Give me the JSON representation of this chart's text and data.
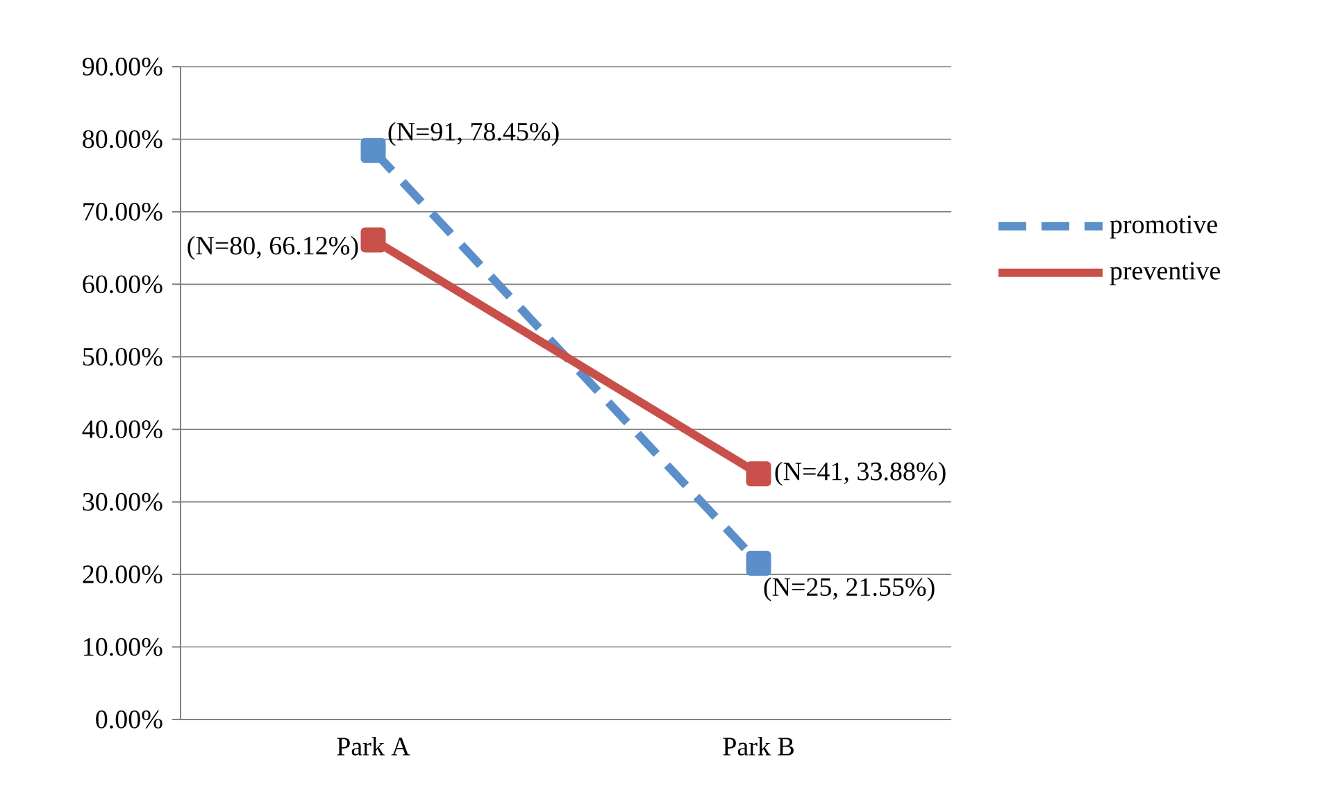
{
  "chart_data": {
    "type": "line",
    "categories": [
      "Park A",
      "Park B"
    ],
    "series": [
      {
        "name": "promotive",
        "color": "#5b8fc9",
        "values": [
          78.45,
          21.55
        ],
        "line_style": "dashed",
        "value_labels": [
          "(N=91, 78.45%)",
          "(N=25, 21.55%)"
        ]
      },
      {
        "name": "preventive",
        "color": "#c9504a",
        "values": [
          66.12,
          33.88
        ],
        "line_style": "solid",
        "value_labels": [
          "(N=80, 66.12%)",
          "(N=41, 33.88%)"
        ]
      }
    ],
    "ylim": [
      0,
      90
    ],
    "yticks": [
      {
        "value": 0,
        "label": "0.00%"
      },
      {
        "value": 10,
        "label": "10.00%"
      },
      {
        "value": 20,
        "label": "20.00%"
      },
      {
        "value": 30,
        "label": "30.00%"
      },
      {
        "value": 40,
        "label": "40.00%"
      },
      {
        "value": 50,
        "label": "50.00%"
      },
      {
        "value": 60,
        "label": "60.00%"
      },
      {
        "value": 70,
        "label": "70.00%"
      },
      {
        "value": 80,
        "label": "80.00%"
      },
      {
        "value": 90,
        "label": "90.00%"
      }
    ],
    "grid": "y",
    "legend": "right",
    "marker": "square"
  }
}
